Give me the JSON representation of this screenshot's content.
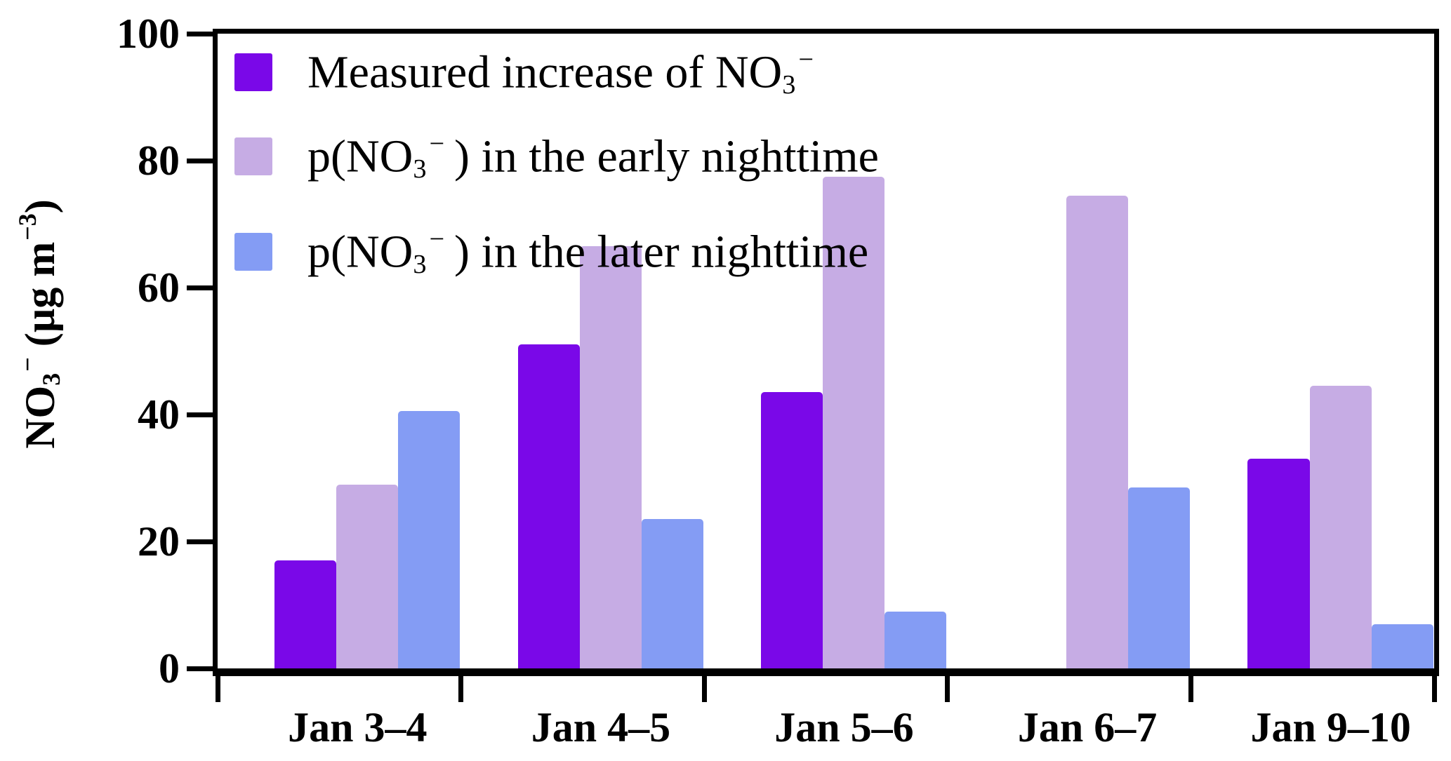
{
  "figure": {
    "background": "#FFFFFF",
    "axis_color": "#000000"
  },
  "y_axis": {
    "title_parts": {
      "base": "NO",
      "sub": "3",
      "sup": "−",
      "unit_pre": " (µg m",
      "unit_sup": "−3",
      "unit_post": ")"
    },
    "tick_labels": [
      "0",
      "20",
      "40",
      "60",
      "80",
      "100"
    ],
    "range": [
      0,
      100
    ]
  },
  "x_axis": {
    "categories": [
      "Jan 3–4",
      "Jan 4–5",
      "Jan 5–6",
      "Jan 6–7",
      "Jan 9–10"
    ]
  },
  "legend": {
    "items": [
      {
        "prefix": "Measured increase of NO",
        "sub": "3",
        "sup": "−",
        "suffix": "",
        "swatch_color": "#7A08E8"
      },
      {
        "prefix": "p(NO",
        "sub": "3",
        "sup": "−",
        "suffix": ") in the early nighttime",
        "swatch_color": "#C6ACE4"
      },
      {
        "prefix": "p(NO",
        "sub": "3",
        "sup": "−",
        "suffix": ") in the later nighttime",
        "swatch_color": "#849CF4"
      }
    ]
  },
  "chart_data": {
    "type": "bar",
    "title": "",
    "xlabel": "",
    "ylabel": "NO3− (µg m−3)",
    "ylim": [
      0,
      100
    ],
    "yticks": [
      0,
      20,
      40,
      60,
      80,
      100
    ],
    "grid": false,
    "legend_position": "inside top-left",
    "categories": [
      "Jan 3–4",
      "Jan 4–5",
      "Jan 5–6",
      "Jan 6–7",
      "Jan 9–10"
    ],
    "series": [
      {
        "name": "Measured increase of NO3−",
        "color": "#7A08E8",
        "values": [
          17,
          51,
          43.5,
          null,
          33
        ]
      },
      {
        "name": "p(NO3−) in the early nighttime",
        "color": "#C6ACE4",
        "values": [
          29,
          66.5,
          77.5,
          74.5,
          44.5
        ]
      },
      {
        "name": "p(NO3−) in the later nighttime",
        "color": "#849CF4",
        "values": [
          40.5,
          23.5,
          9,
          28.5,
          7
        ]
      }
    ]
  }
}
